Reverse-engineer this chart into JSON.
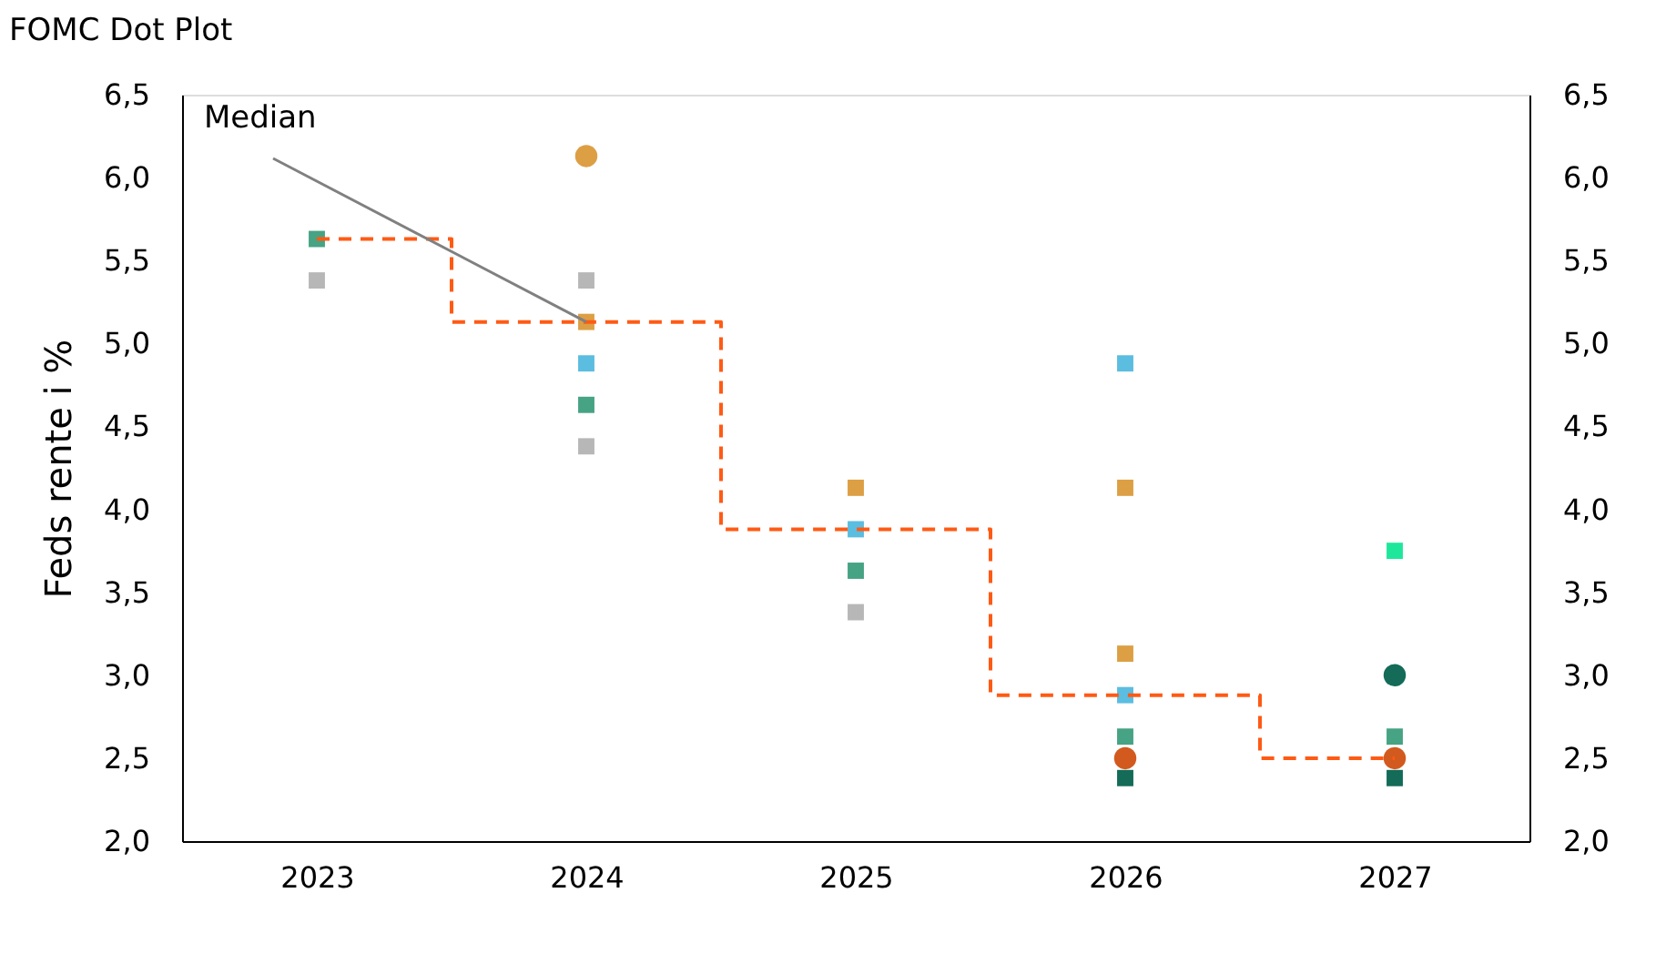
{
  "chart_data": {
    "type": "scatter",
    "title": "FOMC Dot Plot",
    "ylabel": "Feds rente i %",
    "categories": [
      "2023",
      "2024",
      "2025",
      "2026",
      "2027"
    ],
    "series": [
      {
        "marker": "square",
        "values": [
          5.63,
          5.38,
          4.13,
          4.88,
          3.75
        ],
        "colors": [
          "#46a383",
          "#b7b7b7",
          "#dd9f44",
          "#5bbde0",
          "#1ee79b"
        ]
      },
      {
        "marker": "square",
        "values": [
          5.38,
          5.13,
          3.88,
          4.13,
          2.63
        ],
        "colors": [
          "#b7b7b7",
          "#dd9f44",
          "#5bbde0",
          "#dd9f44",
          "#46a383"
        ]
      },
      {
        "marker": "square",
        "values": [
          null,
          4.88,
          3.63,
          3.13,
          2.38
        ],
        "colors": [
          null,
          "#5bbde0",
          "#46a383",
          "#dd9f44",
          "#136b58"
        ]
      },
      {
        "marker": "square",
        "values": [
          null,
          4.63,
          3.38,
          2.88,
          null
        ],
        "colors": [
          null,
          "#46a383",
          "#b7b7b7",
          "#5bbde0",
          null
        ]
      },
      {
        "marker": "square",
        "values": [
          null,
          4.38,
          null,
          2.63,
          null
        ],
        "colors": [
          null,
          "#b7b7b7",
          null,
          "#46a383",
          null
        ]
      },
      {
        "marker": "square",
        "values": [
          null,
          null,
          null,
          2.38,
          null
        ],
        "colors": [
          null,
          null,
          null,
          "#136b58",
          null
        ]
      },
      {
        "marker": "circle",
        "values": [
          null,
          6.13,
          null,
          2.5,
          3.0
        ],
        "colors": [
          null,
          "#dd9f44",
          null,
          "#d25a1e",
          "#136b58"
        ]
      },
      {
        "marker": "circle",
        "values": [
          null,
          null,
          null,
          null,
          2.5
        ],
        "colors": [
          null,
          null,
          null,
          null,
          "#d25a1e"
        ]
      },
      {
        "type": "step",
        "color": "#ff5a14",
        "line_style": "dashed",
        "values": [
          5.63,
          5.13,
          3.88,
          2.88,
          2.5
        ]
      }
    ],
    "annotations": [
      {
        "text": "Median",
        "x": "2024",
        "y": 5.13
      }
    ],
    "ylim": [
      2.0,
      6.5
    ],
    "yticks": [
      {
        "value": 2.0,
        "label": "2,0"
      },
      {
        "value": 2.5,
        "label": "2,5"
      },
      {
        "value": 3.0,
        "label": "3,0"
      },
      {
        "value": 3.5,
        "label": "3,5"
      },
      {
        "value": 4.0,
        "label": "4,0"
      },
      {
        "value": 4.5,
        "label": "4,5"
      },
      {
        "value": 5.0,
        "label": "5,0"
      },
      {
        "value": 5.5,
        "label": "5,5"
      },
      {
        "value": 6.0,
        "label": "6,0"
      },
      {
        "value": 6.5,
        "label": "6,5"
      }
    ],
    "y2lim": [
      2.0,
      6.5
    ],
    "y2ticks": [
      {
        "value": 2.0,
        "label": "2,0"
      },
      {
        "value": 2.5,
        "label": "2,5"
      },
      {
        "value": 3.0,
        "label": "3,0"
      },
      {
        "value": 3.5,
        "label": "3,5"
      },
      {
        "value": 4.0,
        "label": "4,0"
      },
      {
        "value": 4.5,
        "label": "4,5"
      },
      {
        "value": 5.0,
        "label": "5,0"
      },
      {
        "value": 5.5,
        "label": "5,5"
      },
      {
        "value": 6.0,
        "label": "6,0"
      },
      {
        "value": 6.5,
        "label": "6,5"
      }
    ],
    "grid": false
  }
}
